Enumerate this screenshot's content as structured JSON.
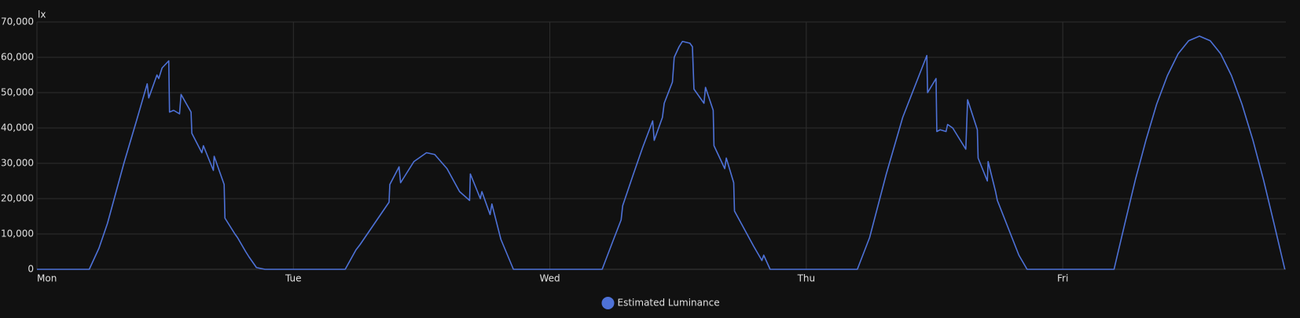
{
  "chart_data": {
    "type": "line",
    "y_label": "lx",
    "x": [
      0,
      0.204,
      0.242,
      0.275,
      0.339,
      0.388,
      0.43,
      0.436,
      0.468,
      0.475,
      0.488,
      0.514,
      0.517,
      0.533,
      0.556,
      0.562,
      0.601,
      0.604,
      0.643,
      0.649,
      0.688,
      0.691,
      0.73,
      0.733,
      0.772,
      0.782,
      0.814,
      0.827,
      0.856,
      0.889,
      1.202,
      1.244,
      1.26,
      1.373,
      1.376,
      1.412,
      1.418,
      1.47,
      1.519,
      1.551,
      1.599,
      1.648,
      1.687,
      1.69,
      1.729,
      1.735,
      1.767,
      1.774,
      1.809,
      1.858,
      2.204,
      2.246,
      2.278,
      2.284,
      2.326,
      2.362,
      2.401,
      2.407,
      2.439,
      2.446,
      2.478,
      2.485,
      2.504,
      2.517,
      2.546,
      2.556,
      2.562,
      2.601,
      2.607,
      2.637,
      2.64,
      2.682,
      2.688,
      2.717,
      2.72,
      2.795,
      2.827,
      2.834,
      2.859,
      3.199,
      3.247,
      3.312,
      3.376,
      3.47,
      3.473,
      3.506,
      3.509,
      3.522,
      3.545,
      3.551,
      3.571,
      3.622,
      3.629,
      3.667,
      3.67,
      3.706,
      3.709,
      3.738,
      3.745,
      3.829,
      3.861,
      4.2,
      4.242,
      4.283,
      4.325,
      4.366,
      4.408,
      4.45,
      4.491,
      4.533,
      4.575,
      4.616,
      4.658,
      4.699,
      4.741,
      4.783,
      4.824,
      4.866
    ],
    "series": [
      {
        "name": "Estimated Luminance",
        "color": "#4e72d8",
        "values": [
          0,
          0,
          6000,
          13000,
          30000,
          42000,
          52500,
          48500,
          55000,
          54000,
          57000,
          59000,
          44500,
          45000,
          44000,
          49500,
          44500,
          38500,
          33000,
          35000,
          28000,
          32000,
          24000,
          14500,
          10000,
          9000,
          5000,
          3500,
          500,
          0,
          0,
          5500,
          7000,
          19000,
          24000,
          29000,
          24500,
          30500,
          33000,
          32500,
          28500,
          22000,
          19500,
          27000,
          20000,
          22000,
          15500,
          18500,
          8500,
          0,
          0,
          8000,
          14000,
          18000,
          27000,
          34500,
          42000,
          36500,
          43000,
          47000,
          53000,
          60000,
          63000,
          64500,
          64000,
          63000,
          51000,
          47000,
          51500,
          45000,
          35000,
          28500,
          31500,
          24500,
          16500,
          6500,
          2500,
          4000,
          0,
          0,
          9000,
          27000,
          43000,
          60500,
          50000,
          54000,
          39000,
          39500,
          39000,
          41000,
          40000,
          34000,
          48000,
          39500,
          31500,
          25000,
          30500,
          22000,
          19500,
          4000,
          0,
          0,
          12900,
          25300,
          36700,
          46700,
          54800,
          61000,
          64700,
          66000,
          64700,
          61000,
          54800,
          46700,
          36700,
          25300,
          12900,
          0
        ]
      }
    ],
    "xlim": [
      0,
      4.87
    ],
    "xticks": [
      {
        "value": 0,
        "label": "Mon"
      },
      {
        "value": 1,
        "label": "Tue"
      },
      {
        "value": 2,
        "label": "Wed"
      },
      {
        "value": 3,
        "label": "Thu"
      },
      {
        "value": 4,
        "label": "Fri"
      }
    ],
    "ylim": [
      0,
      70000
    ],
    "yticks": [
      0,
      {
        "value": 10000,
        "label": "10,000"
      },
      {
        "value": 20000,
        "label": "20,000"
      },
      {
        "value": 30000,
        "label": "30,000"
      },
      {
        "value": 40000,
        "label": "40,000"
      },
      {
        "value": 50000,
        "label": "50,000"
      },
      {
        "value": 60000,
        "label": "60,000"
      },
      {
        "value": 70000,
        "label": "70,000"
      }
    ],
    "grid": true,
    "legend": "bottom"
  }
}
